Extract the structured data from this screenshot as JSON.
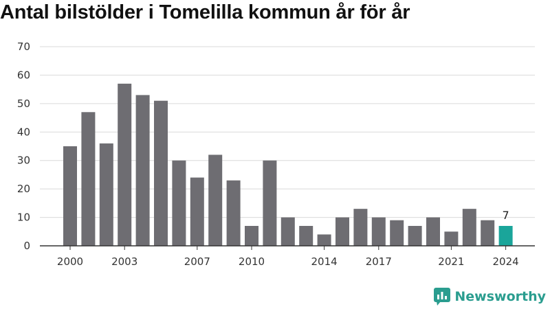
{
  "chart_data": {
    "type": "bar",
    "title": "Antal bilstölder i Tomelilla kommun år för år",
    "categories": [
      2000,
      2001,
      2002,
      2003,
      2004,
      2005,
      2006,
      2007,
      2008,
      2009,
      2010,
      2011,
      2012,
      2013,
      2014,
      2015,
      2016,
      2017,
      2018,
      2019,
      2020,
      2021,
      2022,
      2023,
      2024
    ],
    "values": [
      35,
      47,
      36,
      57,
      53,
      51,
      30,
      24,
      32,
      23,
      7,
      30,
      10,
      7,
      4,
      10,
      13,
      10,
      9,
      7,
      10,
      5,
      13,
      9,
      7
    ],
    "x_tick_labels": [
      "2000",
      "2003",
      "2007",
      "2010",
      "2014",
      "2017",
      "2021",
      "2024"
    ],
    "y_tick_labels": [
      "0",
      "10",
      "20",
      "30",
      "40",
      "50",
      "60",
      "70"
    ],
    "ylim": [
      0,
      70
    ],
    "grid": true,
    "highlight": {
      "category": 2024,
      "label": "7"
    },
    "colors": {
      "bar": "#6e6d72",
      "highlight": "#1aa59a",
      "grid": "#d9d9d9",
      "axis": "#333333"
    }
  },
  "branding": {
    "name": "Newsworthy",
    "color": "#2a9d8f"
  }
}
